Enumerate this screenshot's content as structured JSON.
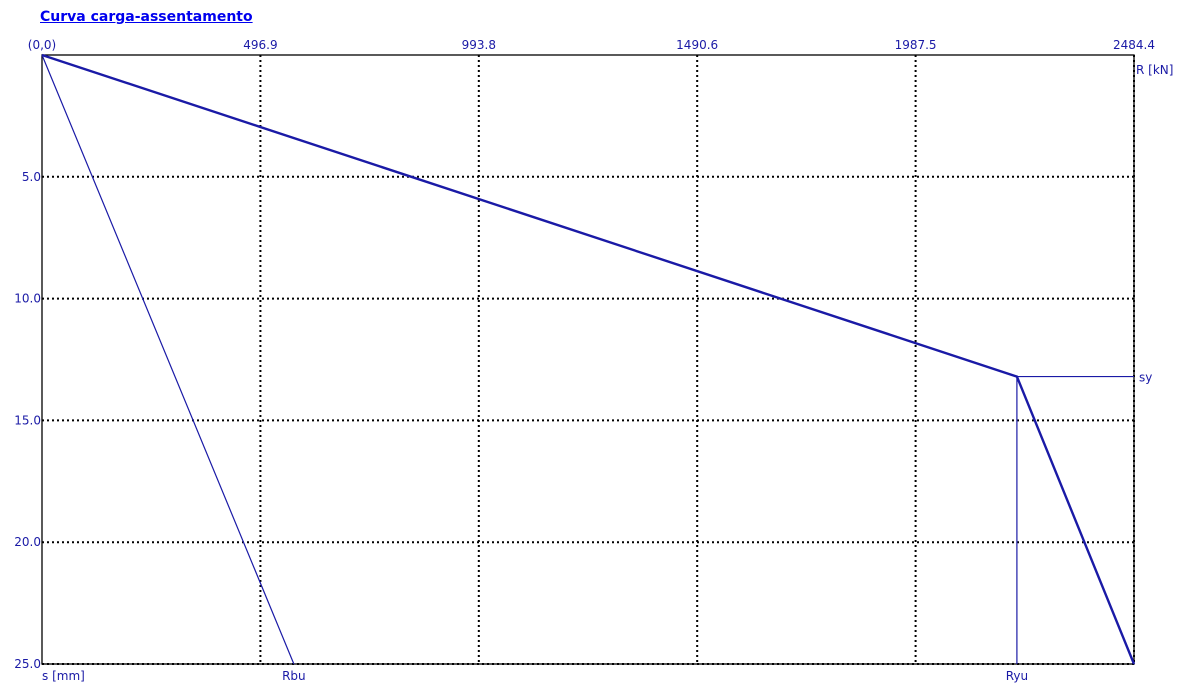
{
  "title": "Curva carga-assentamento",
  "chart_data": {
    "type": "line",
    "title": "Curva carga-assentamento",
    "origin_label": "(0,0)",
    "x_axis": {
      "label": "R [kN]",
      "position": "top",
      "range": [
        0,
        2484.4
      ],
      "ticks": [
        496.9,
        993.8,
        1490.6,
        1987.5,
        2484.4
      ],
      "tick_labels": [
        "496.9",
        "993.8",
        "1490.6",
        "1987.5",
        "2484.4"
      ]
    },
    "y_axis": {
      "label": "s [mm]",
      "inverted": true,
      "range": [
        0,
        25
      ],
      "ticks": [
        5,
        10,
        15,
        20,
        25
      ],
      "tick_labels": [
        "5.0",
        "10.0",
        "15.0",
        "20.0",
        "25.0"
      ]
    },
    "grid": true,
    "grid_style": "dotted",
    "series": [
      {
        "role": "main-curve",
        "thick": true,
        "x": [
          0,
          2218,
          2484.4
        ],
        "y": [
          0,
          13.2,
          25.0
        ]
      },
      {
        "role": "base-line",
        "thick": false,
        "x": [
          0,
          573
        ],
        "y": [
          0,
          25.0
        ]
      },
      {
        "role": "ryu-guide",
        "thick": false,
        "x": [
          2218,
          2218
        ],
        "y": [
          13.2,
          25.0
        ]
      },
      {
        "role": "sy-guide",
        "thick": false,
        "x": [
          2218,
          2484.4
        ],
        "y": [
          13.2,
          13.2
        ]
      }
    ],
    "annotations": [
      {
        "text": "sy",
        "x": 2484.4,
        "y": 13.2,
        "placement": "right"
      },
      {
        "text": "Rbu",
        "x": 573,
        "y": 25.0,
        "placement": "below"
      },
      {
        "text": "Ryu",
        "x": 2218,
        "y": 25.0,
        "placement": "below"
      }
    ],
    "colors": {
      "line": "#1a1aa6",
      "grid": "#000000",
      "text": "#1a1aa6"
    }
  }
}
